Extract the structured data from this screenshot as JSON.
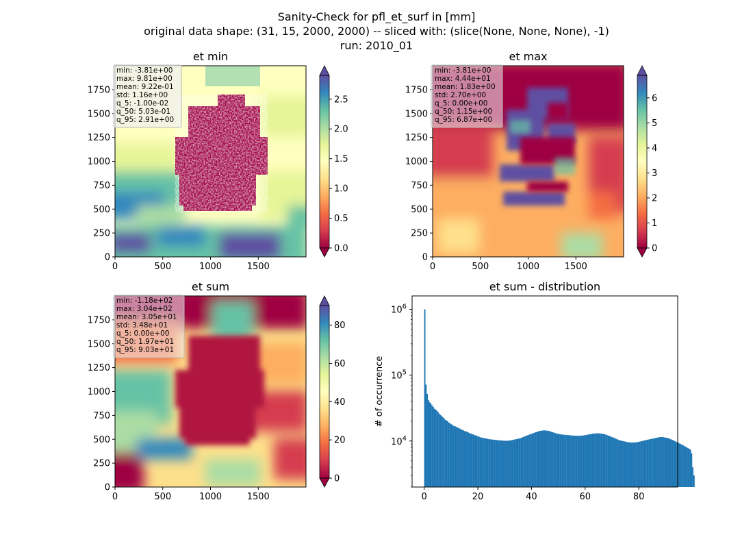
{
  "suptitle": [
    "Sanity-Check for pfl_et_surf in [mm]",
    "original data shape: (31, 15, 2000, 2000) -- sliced with: (slice(None, None, None), -1)",
    "run: 2010_01"
  ],
  "chart_data": [
    {
      "type": "heatmap",
      "title": "et min",
      "colormap": "Spectral",
      "xlim": [
        0,
        2000
      ],
      "ylim": [
        0,
        2000
      ],
      "xticks": [
        0,
        500,
        1000,
        1500
      ],
      "yticks": [
        0,
        250,
        500,
        750,
        1000,
        1250,
        1500,
        1750
      ],
      "colorbar": {
        "range": [
          0,
          2.9
        ],
        "ticks": [
          "0.0",
          "0.5",
          "1.0",
          "1.5",
          "2.0",
          "2.5"
        ],
        "extend": "both"
      },
      "stats": [
        "min: -3.81e+00",
        "max: 9.81e+00",
        "mean: 9.22e-01",
        "std: 1.16e+00",
        "q_5: -1.00e-02",
        "q_50: 5.03e-01",
        "q_95: 2.91e+00"
      ]
    },
    {
      "type": "heatmap",
      "title": "et max",
      "colormap": "Spectral",
      "xlim": [
        0,
        2000
      ],
      "ylim": [
        0,
        2000
      ],
      "xticks": [
        0,
        500,
        1000,
        1500
      ],
      "yticks": [
        0,
        250,
        500,
        750,
        1000,
        1250,
        1500,
        1750
      ],
      "colorbar": {
        "range": [
          0,
          6.9
        ],
        "ticks": [
          "0",
          "1",
          "2",
          "3",
          "4",
          "5",
          "6"
        ],
        "extend": "both"
      },
      "stats": [
        "min: -3.81e+00",
        "max: 4.44e+01",
        "mean: 1.83e+00",
        "std: 2.70e+00",
        "q_5: 0.00e+00",
        "q_50: 1.15e+00",
        "q_95: 6.87e+00"
      ]
    },
    {
      "type": "heatmap",
      "title": "et sum",
      "colormap": "Spectral",
      "xlim": [
        0,
        2000
      ],
      "ylim": [
        0,
        2000
      ],
      "xticks": [
        0,
        500,
        1000,
        1500
      ],
      "yticks": [
        0,
        250,
        500,
        750,
        1000,
        1250,
        1500,
        1750
      ],
      "colorbar": {
        "range": [
          0,
          90.3
        ],
        "ticks": [
          "0",
          "20",
          "40",
          "60",
          "80"
        ],
        "extend": "both"
      },
      "stats": [
        "min: -1.18e+02",
        "max: 3.04e+02",
        "mean: 3.05e+01",
        "std: 3.48e+01",
        "q_5: 0.00e+00",
        "q_50: 1.97e+01",
        "q_95: 9.03e+01"
      ]
    },
    {
      "type": "bar",
      "subtype": "histogram",
      "title": "et sum - distribution",
      "ylabel": "# of occurrence",
      "yscale": "log",
      "color": "#1f77b4",
      "xlim": [
        -4.5,
        94.5
      ],
      "ylim": [
        2000,
        1600000
      ],
      "xticks": [
        0,
        20,
        40,
        60,
        80
      ],
      "yticks": [
        {
          "value": 10000,
          "label": "10",
          "exp": "4"
        },
        {
          "value": 100000,
          "label": "10",
          "exp": "5"
        },
        {
          "value": 1000000,
          "label": "10",
          "exp": "6"
        }
      ],
      "bin_width": 0.45,
      "x_start": 0,
      "values": [
        1000000,
        72000,
        52000,
        42000,
        39000,
        37000,
        35000,
        33000,
        31000,
        30000,
        29000,
        27500,
        26000,
        25000,
        24000,
        23000,
        22000,
        21000,
        20500,
        20000,
        19000,
        18500,
        18000,
        17500,
        17000,
        16800,
        16500,
        16000,
        15800,
        15500,
        15000,
        14800,
        14500,
        14200,
        14000,
        13800,
        13500,
        13200,
        13000,
        12800,
        12600,
        12400,
        12200,
        12000,
        11800,
        11600,
        11400,
        11300,
        11200,
        11100,
        11000,
        10900,
        10800,
        10700,
        10600,
        10600,
        10500,
        10500,
        10400,
        10400,
        10300,
        10300,
        10200,
        10200,
        10200,
        10100,
        10100,
        10100,
        10100,
        10100,
        10200,
        10200,
        10300,
        10400,
        10500,
        10600,
        10700,
        10800,
        10900,
        11000,
        11200,
        11400,
        11600,
        11800,
        12000,
        12200,
        12400,
        12600,
        12800,
        13000,
        13200,
        13400,
        13600,
        13800,
        14000,
        14200,
        14300,
        14400,
        14500,
        14500,
        14500,
        14400,
        14300,
        14200,
        14000,
        13800,
        13600,
        13400,
        13200,
        13000,
        12900,
        12800,
        12700,
        12600,
        12500,
        12500,
        12400,
        12400,
        12300,
        12300,
        12200,
        12200,
        12100,
        12100,
        12100,
        12000,
        12000,
        12000,
        12000,
        12000,
        12100,
        12100,
        12200,
        12300,
        12400,
        12500,
        12600,
        12700,
        12800,
        12900,
        13000,
        13000,
        13100,
        13100,
        13100,
        13000,
        13000,
        12900,
        12800,
        12700,
        12500,
        12300,
        12100,
        11900,
        11700,
        11500,
        11300,
        11100,
        10900,
        10700,
        10500,
        10300,
        10200,
        10100,
        10000,
        9900,
        9800,
        9700,
        9600,
        9600,
        9500,
        9500,
        9500,
        9500,
        9500,
        9600,
        9600,
        9700,
        9800,
        9900,
        10000,
        10100,
        10200,
        10300,
        10400,
        10500,
        10600,
        10700,
        10800,
        10900,
        11000,
        11100,
        11200,
        11300,
        11400,
        11500,
        11500,
        11500,
        11400,
        11300,
        11200,
        11100,
        11000,
        10800,
        10600,
        10400,
        10200,
        10000,
        9800,
        9600,
        9400,
        9200,
        9000,
        8800,
        8600,
        8400,
        8200,
        8000,
        7800,
        7600,
        7400,
        6500,
        4000,
        3000
      ]
    }
  ]
}
